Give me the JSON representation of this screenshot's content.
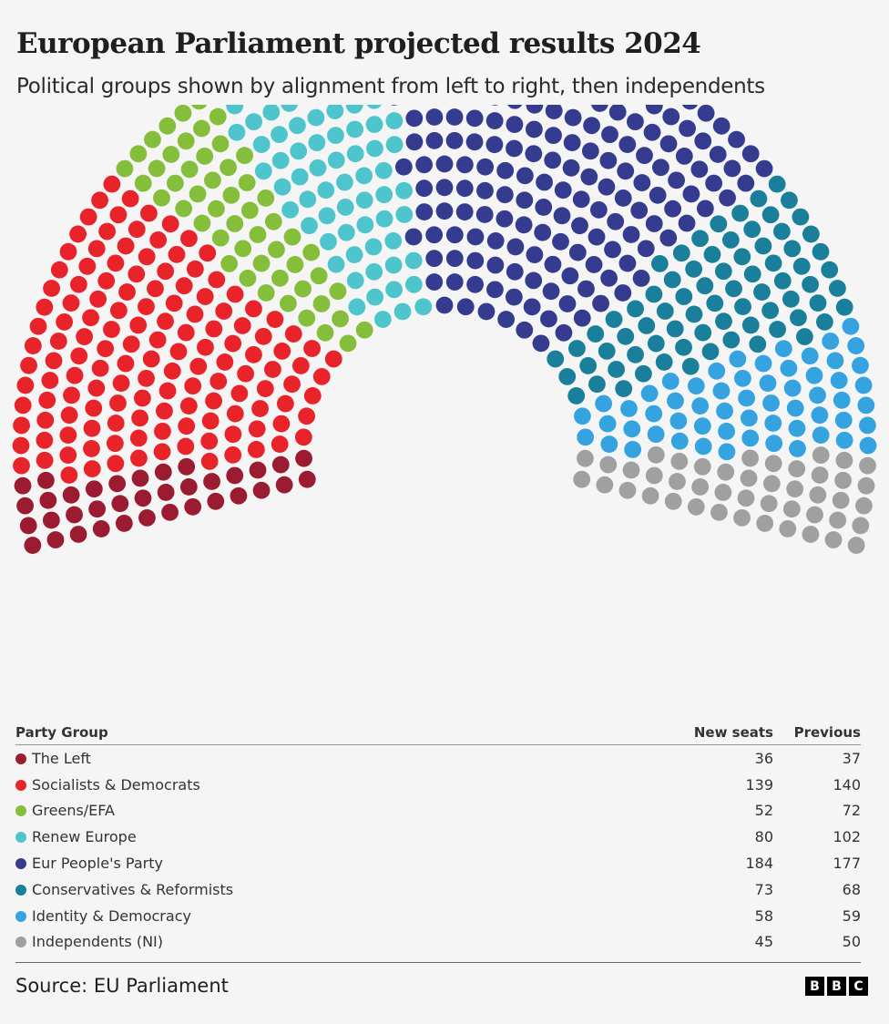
{
  "title": "European Parliament projected results 2024",
  "subtitle": "Political groups shown by alignment from left to right, then independents",
  "table": {
    "headers": {
      "group": "Party Group",
      "new": "New seats",
      "previous": "Previous"
    }
  },
  "chart_data": {
    "type": "hemicycle",
    "groups": [
      {
        "name": "The Left",
        "new_seats": 36,
        "previous": 37,
        "color": "#9b1c31"
      },
      {
        "name": "Socialists & Democrats",
        "new_seats": 139,
        "previous": 140,
        "color": "#e8232a"
      },
      {
        "name": "Greens/EFA",
        "new_seats": 52,
        "previous": 72,
        "color": "#84be3a"
      },
      {
        "name": "Renew Europe",
        "new_seats": 80,
        "previous": 102,
        "color": "#4ec5cc"
      },
      {
        "name": "Eur People's Party",
        "new_seats": 184,
        "previous": 177,
        "color": "#353b8f"
      },
      {
        "name": "Conservatives & Reformists",
        "new_seats": 73,
        "previous": 68,
        "color": "#1a7f9a"
      },
      {
        "name": "Identity & Democracy",
        "new_seats": 58,
        "previous": 59,
        "color": "#35a3e0"
      },
      {
        "name": "Independents (NI)",
        "new_seats": 45,
        "previous": 50,
        "color": "#a0a0a0"
      }
    ],
    "unfilled_seats_color": "#e6e6e6"
  },
  "footer": {
    "source": "Source: EU Parliament",
    "logo": [
      "B",
      "B",
      "C"
    ]
  }
}
